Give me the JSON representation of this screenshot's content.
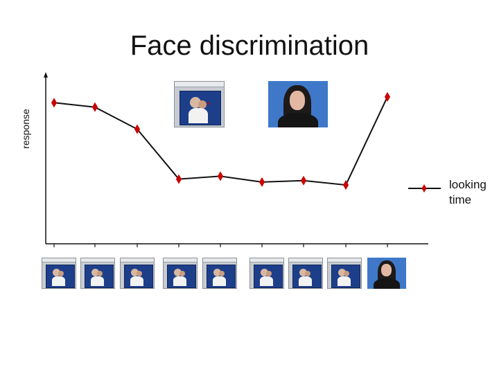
{
  "chart_data": {
    "type": "line",
    "title": "Face discrimination",
    "ylabel": "response",
    "xlabel": "",
    "x": [
      1,
      2,
      3,
      4,
      5,
      6,
      7,
      8,
      9
    ],
    "series": [
      {
        "name": "looking time",
        "values": [
          0.96,
          0.93,
          0.78,
          0.44,
          0.46,
          0.42,
          0.43,
          0.4,
          1.0
        ]
      }
    ],
    "ylim": [
      0,
      1.15
    ],
    "grid": false,
    "legend_position": "right",
    "marker": "diamond",
    "marker_color": "#cc0000",
    "line_color": "#111111"
  },
  "legend": {
    "line1": "looking",
    "line2": "time"
  },
  "stimuli": {
    "x_axis_thumbnails": [
      "baby-photo",
      "baby-photo",
      "baby-photo",
      "baby-photo",
      "baby-photo",
      "baby-photo",
      "baby-photo",
      "baby-photo",
      "woman-photo"
    ],
    "top_thumbnails": [
      "baby-photo",
      "woman-photo"
    ]
  }
}
